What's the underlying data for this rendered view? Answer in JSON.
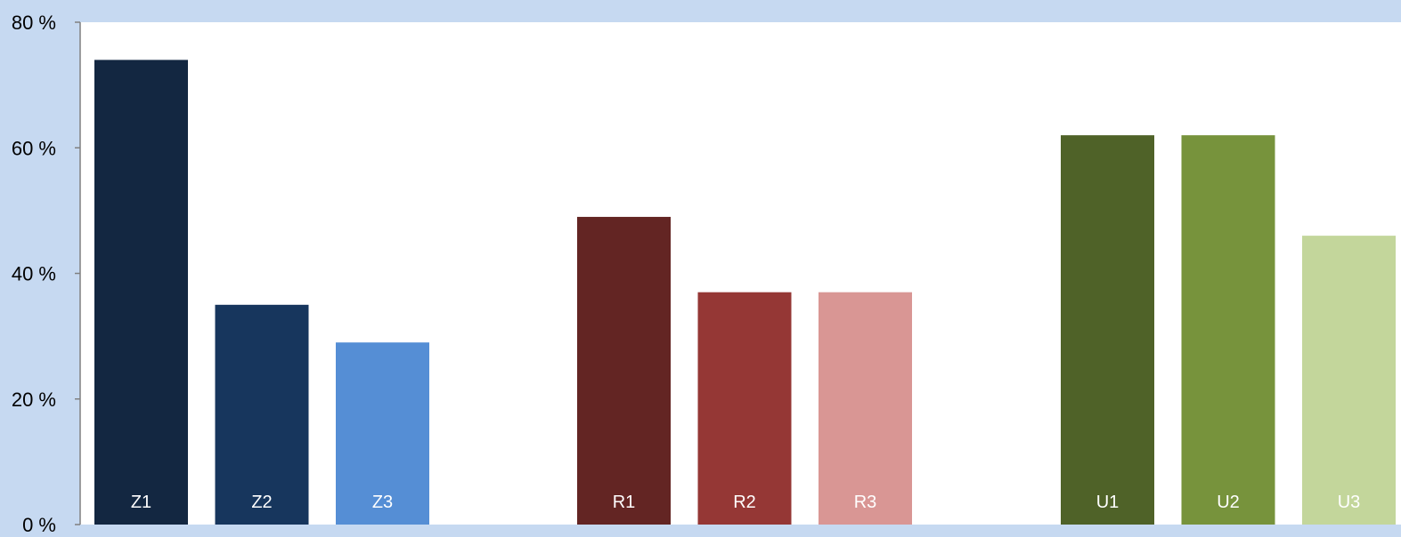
{
  "chart_data": {
    "type": "bar",
    "title": "",
    "xlabel": "",
    "ylabel": "",
    "ylim": [
      0,
      80
    ],
    "yticks": [
      {
        "value": 0,
        "label": "0 %"
      },
      {
        "value": 20,
        "label": "20 %"
      },
      {
        "value": 40,
        "label": "40 %"
      },
      {
        "value": 60,
        "label": "60 %"
      },
      {
        "value": 80,
        "label": "80 %"
      }
    ],
    "grid": false,
    "legend": "none",
    "groups": [
      {
        "bars": [
          {
            "label": "Z1",
            "value": 74,
            "color": "#132741"
          },
          {
            "label": "Z2",
            "value": 35,
            "color": "#17365d"
          },
          {
            "label": "Z3",
            "value": 29,
            "color": "#558ed5"
          }
        ]
      },
      {
        "bars": [
          {
            "label": "R1",
            "value": 49,
            "color": "#632523"
          },
          {
            "label": "R2",
            "value": 37,
            "color": "#953735"
          },
          {
            "label": "R3",
            "value": 37,
            "color": "#d99694"
          }
        ]
      },
      {
        "bars": [
          {
            "label": "U1",
            "value": 62,
            "color": "#4f6228"
          },
          {
            "label": "U2",
            "value": 62,
            "color": "#77933c"
          },
          {
            "label": "U3",
            "value": 46,
            "color": "#c3d69b"
          }
        ]
      }
    ],
    "colors": {
      "background": "#c6d9f1",
      "plot_area": "#ffffff",
      "axis": "#808080",
      "bar_label": "#ffffff",
      "tick_label": "#000000"
    }
  }
}
